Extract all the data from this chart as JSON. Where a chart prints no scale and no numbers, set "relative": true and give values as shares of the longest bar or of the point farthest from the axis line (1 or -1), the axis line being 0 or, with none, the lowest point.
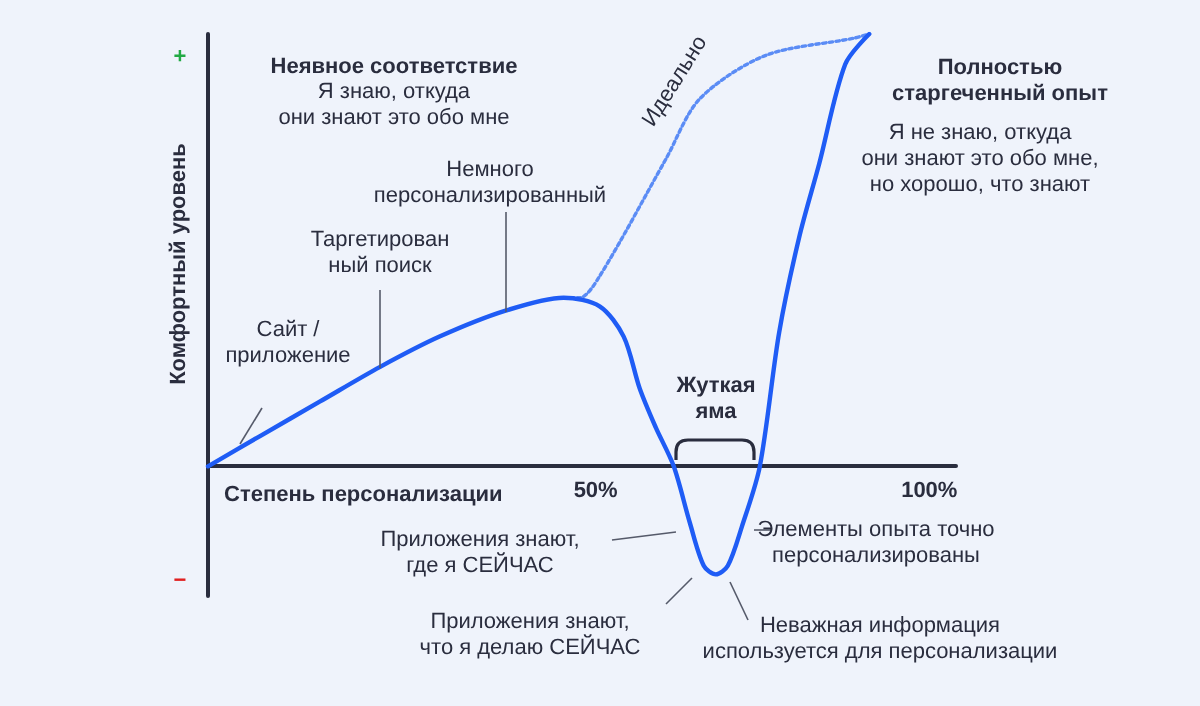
{
  "chart_data": {
    "type": "line",
    "relative": true,
    "xlabel": "Степень персонализации",
    "ylabel": "Комфортный уровень",
    "x": [
      -8.1,
      -0.3,
      8.7,
      17.7,
      26.6,
      36.5,
      45.2,
      50.6,
      54.2,
      56.6,
      59,
      61.7,
      64.1,
      66.2,
      68,
      69.8,
      71.9,
      74.6,
      77.5,
      80.5,
      83.5,
      87.4,
      91
    ],
    "xlim": [
      -8.1,
      104
    ],
    "xticks": [
      {
        "value": 50,
        "label": "50%"
      },
      {
        "value": 100,
        "label": "100%"
      }
    ],
    "tick_labels": "x",
    "grid": false,
    "legend": false,
    "marker": "none",
    "series": [
      {
        "color": "#1f5cf5",
        "line_style": "solid",
        "values": [
          0,
          0.07,
          0.15,
          0.23,
          0.3,
          0.36,
          0.39,
          0.37,
          0.3,
          0.18,
          0.09,
          0,
          -0.13,
          -0.23,
          -0.25,
          -0.23,
          -0.14,
          0,
          0.31,
          0.53,
          0.7,
          0.93,
          1
        ]
      },
      {
        "name": "Идеально",
        "color": "#5b8cf5",
        "line_style": "dotted",
        "x": [
          45.2,
          47.6,
          50.6,
          60.5,
          65.6,
          75.4,
          88.6,
          91
        ],
        "values": [
          0.39,
          0.39,
          0.44,
          0.71,
          0.85,
          0.95,
          0.99,
          1
        ]
      }
    ],
    "annotations": [
      "+",
      "−",
      "Неявное соответствие",
      "Я знаю, откуда\nони знают это обо мне",
      "Немного\nперсонализированный",
      "Таргетирован\nный поиск",
      "Сайт /\nприложение",
      "Полностью\nстаргеченный опыт",
      "Я не знаю, откуда\nони знают это обо мне,\nно хорошо, что знают",
      "Жуткая\nяма",
      "Приложения знают,\nгде я СЕЙЧАС",
      "Элементы опыта точно\nперсонализированы",
      "Приложения знают,\nчто я делаю СЕЙЧАС",
      "Неважная информация\nиспользуется для персонализации"
    ]
  }
}
